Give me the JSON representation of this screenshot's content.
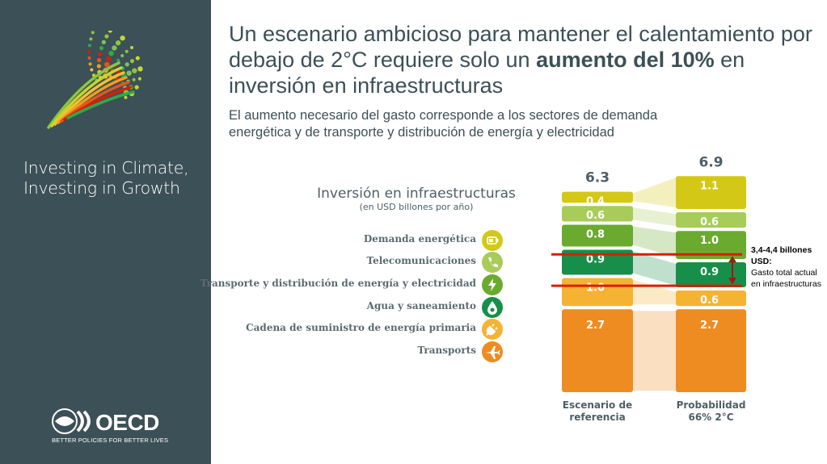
{
  "title": {
    "part1": "Un escenario ambicioso para mantener el calentamiento por debajo de 2°C requiere solo un ",
    "bold": "aumento del 10%",
    "part2": " en inversión en infraestructuras"
  },
  "subtitle": "El aumento necesario del gasto corresponde a los sectores de demanda energética y de transporte y distribución de energía y electricidad",
  "sidebar": {
    "tagline": "Investing in Climate,\nInvesting in Growth",
    "oecd_word": "OECD",
    "oecd_motto": "BETTER POLICIES FOR BETTER LIVES"
  },
  "legend": {
    "items": [
      {
        "label": "Demanda energética",
        "icon": "battery-icon",
        "color": "#d4c816"
      },
      {
        "label": "Telecomunicaciones",
        "icon": "phone-icon",
        "color": "#a8cc5a"
      },
      {
        "label": "Transporte y distribución de energía y electricidad",
        "icon": "lightning-icon",
        "color": "#6aaa2e"
      },
      {
        "label": "Agua y saneamiento",
        "icon": "water-drop-icon",
        "color": "#178f4a"
      },
      {
        "label": "Cadena de suministro de energía primaria",
        "icon": "plug-icon",
        "color": "#f5b333"
      },
      {
        "label": "Transports",
        "icon": "airplane-icon",
        "color": "#ee8c22"
      }
    ]
  },
  "annotation": {
    "bold": "3,4-4,4 billones USD:",
    "text": "Gasto total actual en infraestructuras"
  },
  "chart_data": {
    "type": "bar",
    "stacked": true,
    "title": "Inversión en infraestructuras",
    "subtitle": "(en USD billones por año)",
    "categories": [
      "Escenario de referencia",
      "Probabilidad 66% 2°C"
    ],
    "totals": [
      "6.3",
      "6.9"
    ],
    "series": [
      {
        "name": "Transports",
        "color": "#ee8c22",
        "values": [
          2.7,
          2.7
        ]
      },
      {
        "name": "Cadena de suministro de energía primaria",
        "color": "#f5b333",
        "values": [
          1.0,
          0.6
        ]
      },
      {
        "name": "Agua y saneamiento",
        "color": "#178f4a",
        "values": [
          0.9,
          0.9
        ]
      },
      {
        "name": "Transporte y distribución de energía y electricidad",
        "color": "#6aaa2e",
        "values": [
          0.8,
          1.0
        ]
      },
      {
        "name": "Telecomunicaciones",
        "color": "#a8cc5a",
        "values": [
          0.6,
          0.6
        ]
      },
      {
        "name": "Demanda energética",
        "color": "#d4c816",
        "values": [
          0.4,
          1.1
        ]
      }
    ],
    "reference_band": [
      3.4,
      4.4
    ],
    "band_color": "#d81e05"
  }
}
